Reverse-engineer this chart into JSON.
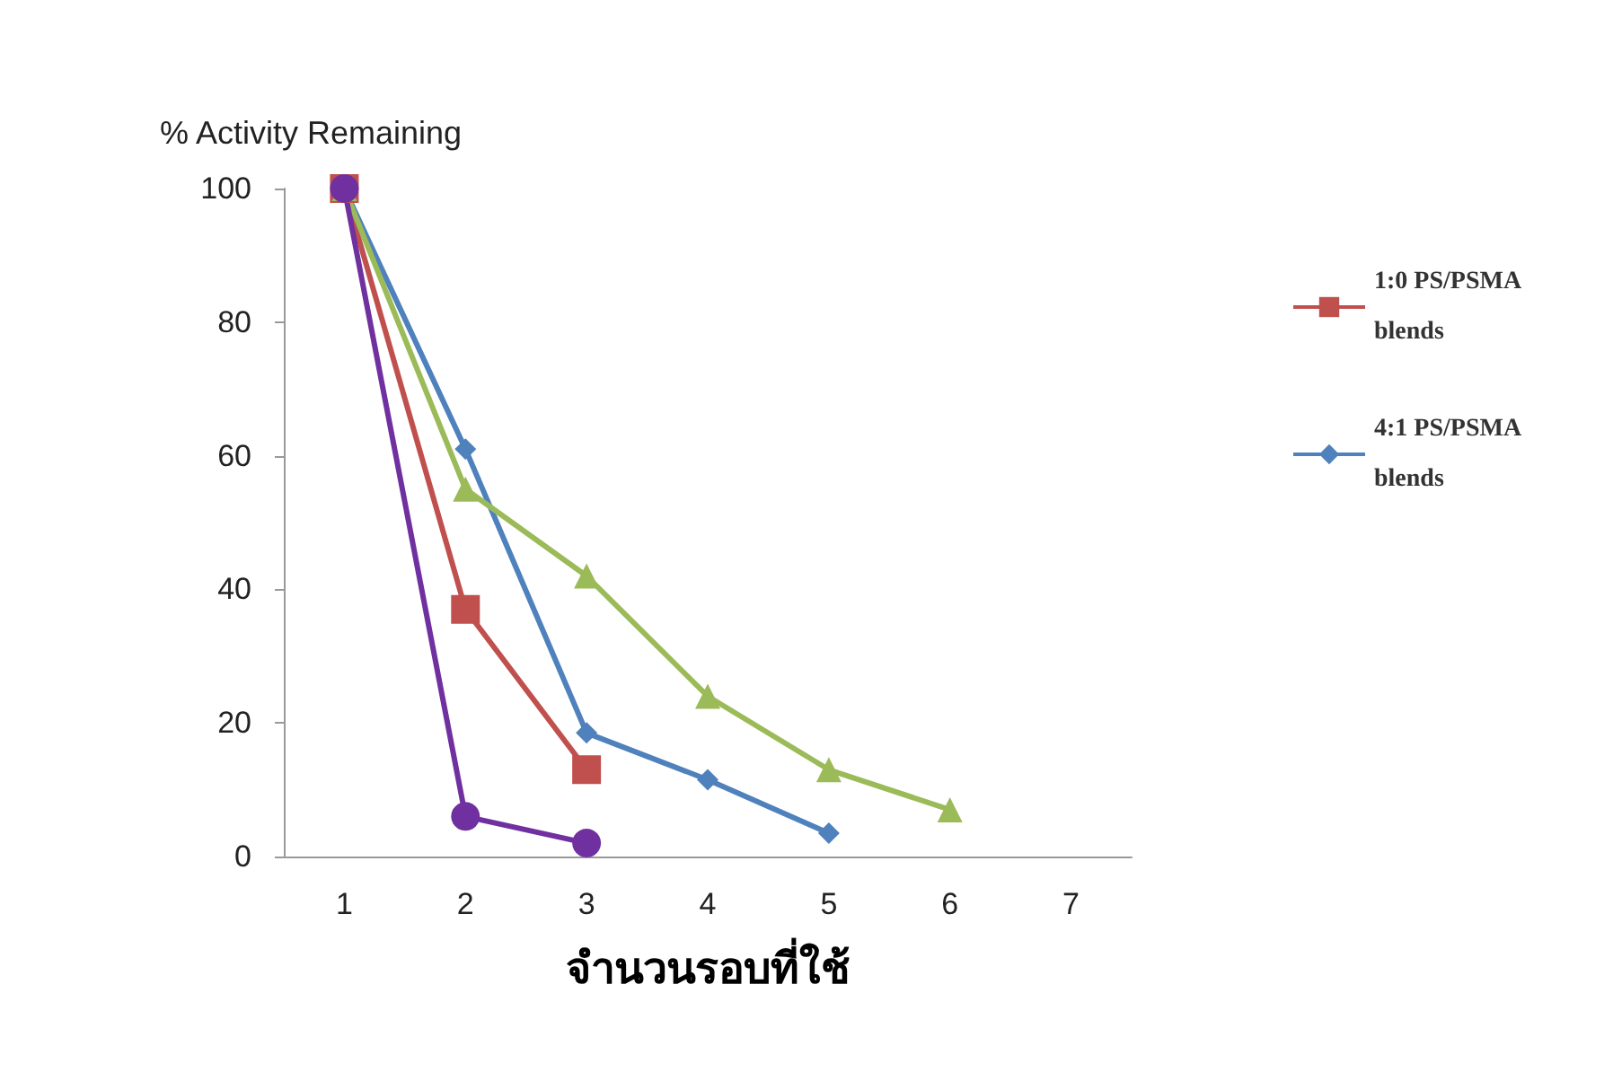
{
  "chart_data": {
    "type": "line",
    "ylabel": "% Activity Remaining",
    "xlabel": "จำนวนรอบที่ใช้",
    "categories": [
      "1",
      "2",
      "3",
      "4",
      "5",
      "6",
      "7"
    ],
    "ylim": [
      0,
      100
    ],
    "yticks": [
      0,
      20,
      40,
      60,
      80,
      100
    ],
    "grid": false,
    "legend": "top right",
    "series": [
      {
        "name": "1:0 PS/PSMA blends",
        "color": "#c0504d",
        "marker": "square",
        "values": [
          100,
          37,
          13,
          null,
          null,
          null,
          null
        ]
      },
      {
        "name": "4:1 PS/PSMA blends",
        "color": "#4f81bd",
        "marker": "diamond",
        "values": [
          100,
          61,
          18.5,
          11.5,
          3.5,
          null,
          null
        ]
      },
      {
        "color": "#9bbb59",
        "marker": "triangle",
        "values": [
          100,
          55,
          42,
          24,
          13,
          7,
          null
        ]
      },
      {
        "color": "#7030a0",
        "marker": "circle",
        "values": [
          100,
          6,
          2,
          null,
          null,
          null,
          null
        ]
      }
    ]
  }
}
